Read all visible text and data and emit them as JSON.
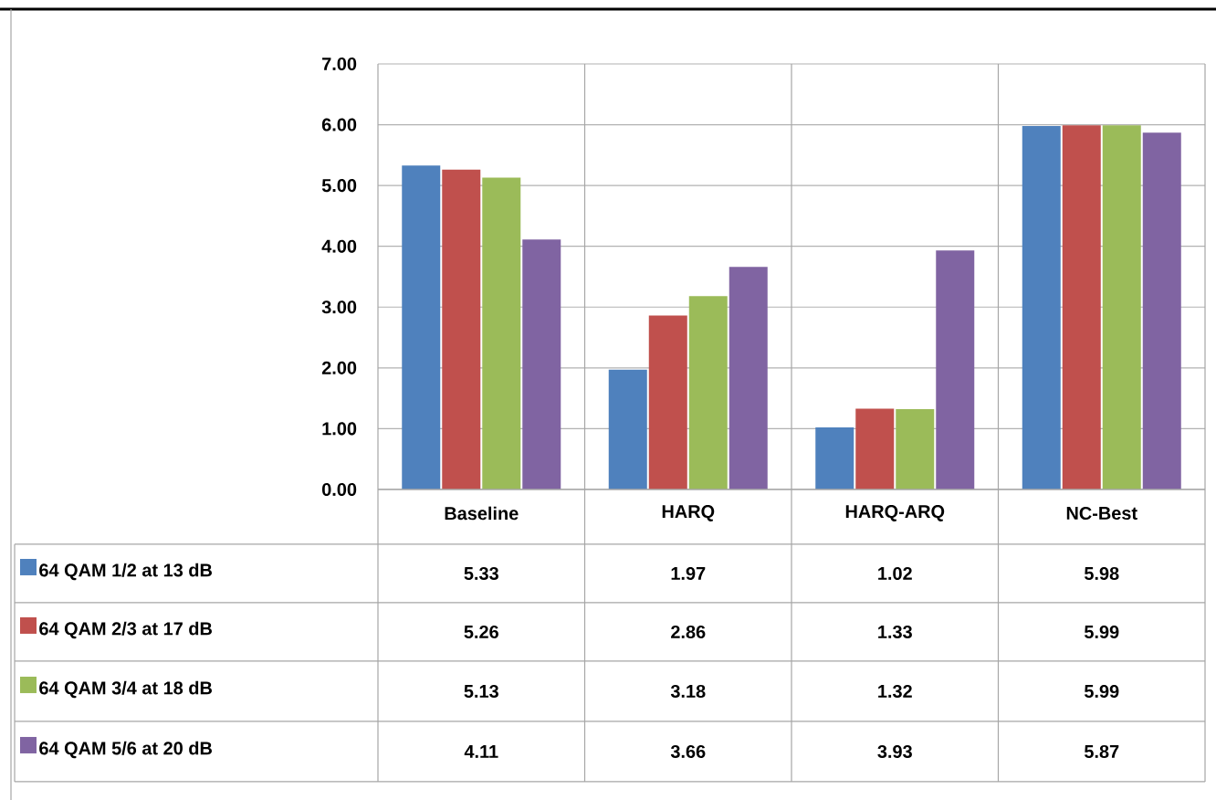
{
  "chart_data": {
    "type": "bar",
    "categories": [
      "Baseline",
      "HARQ",
      "HARQ-ARQ",
      "NC-Best"
    ],
    "series": [
      {
        "name": "64 QAM 1/2 at 13 dB",
        "color": "#4f81bd",
        "values": [
          5.33,
          1.97,
          1.02,
          5.98
        ]
      },
      {
        "name": "64 QAM 2/3 at 17 dB",
        "color": "#c0504d",
        "values": [
          5.26,
          2.86,
          1.33,
          5.99
        ]
      },
      {
        "name": "64 QAM 3/4 at 18 dB",
        "color": "#9bbb59",
        "values": [
          5.13,
          3.18,
          1.32,
          5.99
        ]
      },
      {
        "name": "64 QAM 5/6 at 20 dB",
        "color": "#8064a2",
        "values": [
          4.11,
          3.66,
          3.93,
          5.87
        ]
      }
    ],
    "ylim": [
      0,
      7
    ],
    "yticks": [
      {
        "value": 0,
        "label": "0.00"
      },
      {
        "value": 1,
        "label": "1.00"
      },
      {
        "value": 2,
        "label": "2.00"
      },
      {
        "value": 3,
        "label": "3.00"
      },
      {
        "value": 4,
        "label": "4.00"
      },
      {
        "value": 5,
        "label": "5.00"
      },
      {
        "value": 6,
        "label": "6.00"
      },
      {
        "value": 7,
        "label": "7.00"
      }
    ],
    "grid": "y",
    "legend": "bottom",
    "data_labels": true
  }
}
